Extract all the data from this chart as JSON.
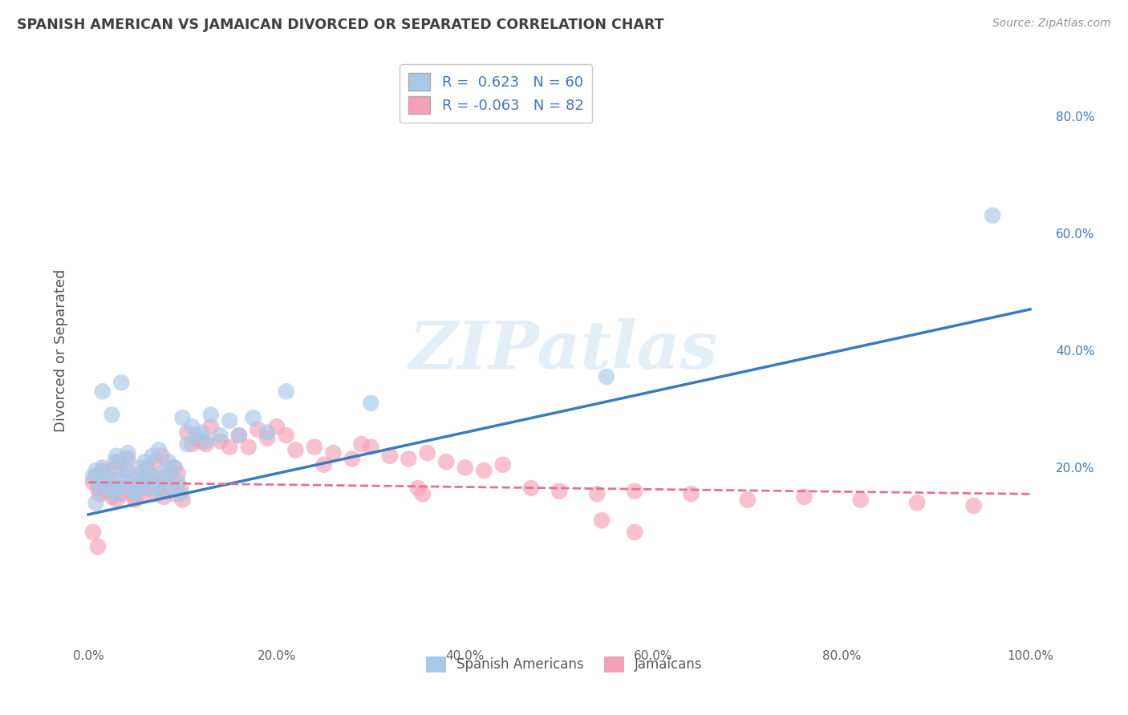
{
  "title": "SPANISH AMERICAN VS JAMAICAN DIVORCED OR SEPARATED CORRELATION CHART",
  "source": "Source: ZipAtlas.com",
  "ylabel": "Divorced or Separated",
  "watermark": "ZIPatlas",
  "legend": {
    "series1_label": "Spanish Americans",
    "series2_label": "Jamaicans",
    "series1_R": "0.623",
    "series1_N": "60",
    "series2_R": "-0.063",
    "series2_N": "82"
  },
  "blue_color": "#a8c8e8",
  "pink_color": "#f4a0b8",
  "blue_line_color": "#3a7abf",
  "pink_line_color": "#e87090",
  "grid_color": "#c8c8c8",
  "background_color": "#ffffff",
  "title_color": "#404040",
  "source_color": "#909090",
  "xlim": [
    -0.01,
    1.02
  ],
  "ylim": [
    -0.1,
    0.9
  ],
  "xticks": [
    0.0,
    0.2,
    0.4,
    0.6,
    0.8,
    1.0
  ],
  "xtick_labels": [
    "0.0%",
    "20.0%",
    "40.0%",
    "60.0%",
    "80.0%",
    "100.0%"
  ],
  "right_yticks": [
    0.2,
    0.4,
    0.6,
    0.8
  ],
  "right_ytick_labels": [
    "20.0%",
    "40.0%",
    "60.0%",
    "80.0%"
  ],
  "blue_line_x0": 0.0,
  "blue_line_y0": 0.12,
  "blue_line_x1": 1.0,
  "blue_line_y1": 0.47,
  "pink_line_x0": 0.0,
  "pink_line_y0": 0.175,
  "pink_line_x1": 1.0,
  "pink_line_y1": 0.155,
  "blue_scatter_x": [
    0.005,
    0.008,
    0.01,
    0.012,
    0.015,
    0.018,
    0.02,
    0.022,
    0.025,
    0.028,
    0.03,
    0.03,
    0.032,
    0.035,
    0.038,
    0.04,
    0.04,
    0.042,
    0.045,
    0.048,
    0.05,
    0.052,
    0.055,
    0.058,
    0.06,
    0.06,
    0.062,
    0.065,
    0.068,
    0.07,
    0.072,
    0.075,
    0.078,
    0.08,
    0.082,
    0.085,
    0.09,
    0.092,
    0.095,
    0.098,
    0.1,
    0.105,
    0.11,
    0.115,
    0.12,
    0.125,
    0.13,
    0.14,
    0.15,
    0.16,
    0.175,
    0.19,
    0.21,
    0.008,
    0.015,
    0.025,
    0.035,
    0.3,
    0.55,
    0.96
  ],
  "blue_scatter_y": [
    0.185,
    0.195,
    0.175,
    0.165,
    0.2,
    0.18,
    0.17,
    0.19,
    0.16,
    0.21,
    0.155,
    0.22,
    0.165,
    0.175,
    0.185,
    0.195,
    0.215,
    0.225,
    0.17,
    0.16,
    0.155,
    0.18,
    0.2,
    0.165,
    0.175,
    0.21,
    0.185,
    0.195,
    0.22,
    0.165,
    0.175,
    0.23,
    0.16,
    0.185,
    0.195,
    0.21,
    0.165,
    0.2,
    0.175,
    0.155,
    0.285,
    0.24,
    0.27,
    0.255,
    0.26,
    0.245,
    0.29,
    0.255,
    0.28,
    0.255,
    0.285,
    0.26,
    0.33,
    0.14,
    0.33,
    0.29,
    0.345,
    0.31,
    0.355,
    0.63
  ],
  "pink_scatter_x": [
    0.005,
    0.008,
    0.01,
    0.012,
    0.015,
    0.018,
    0.02,
    0.022,
    0.025,
    0.028,
    0.03,
    0.032,
    0.035,
    0.038,
    0.04,
    0.042,
    0.045,
    0.048,
    0.05,
    0.052,
    0.055,
    0.058,
    0.06,
    0.062,
    0.065,
    0.068,
    0.07,
    0.072,
    0.075,
    0.078,
    0.08,
    0.082,
    0.085,
    0.09,
    0.092,
    0.095,
    0.098,
    0.1,
    0.105,
    0.11,
    0.115,
    0.12,
    0.125,
    0.13,
    0.14,
    0.15,
    0.16,
    0.17,
    0.18,
    0.19,
    0.2,
    0.21,
    0.22,
    0.24,
    0.26,
    0.28,
    0.3,
    0.32,
    0.34,
    0.36,
    0.38,
    0.4,
    0.42,
    0.44,
    0.47,
    0.5,
    0.54,
    0.58,
    0.64,
    0.7,
    0.76,
    0.82,
    0.88,
    0.94,
    0.005,
    0.01,
    0.25,
    0.29,
    0.545,
    0.58,
    0.35,
    0.355
  ],
  "pink_scatter_y": [
    0.175,
    0.185,
    0.165,
    0.155,
    0.195,
    0.17,
    0.16,
    0.18,
    0.15,
    0.2,
    0.145,
    0.21,
    0.155,
    0.165,
    0.195,
    0.215,
    0.16,
    0.15,
    0.145,
    0.17,
    0.19,
    0.155,
    0.165,
    0.2,
    0.175,
    0.185,
    0.21,
    0.155,
    0.165,
    0.22,
    0.15,
    0.175,
    0.185,
    0.2,
    0.155,
    0.19,
    0.165,
    0.145,
    0.26,
    0.24,
    0.25,
    0.245,
    0.24,
    0.27,
    0.245,
    0.235,
    0.255,
    0.235,
    0.265,
    0.25,
    0.27,
    0.255,
    0.23,
    0.235,
    0.225,
    0.215,
    0.235,
    0.22,
    0.215,
    0.225,
    0.21,
    0.2,
    0.195,
    0.205,
    0.165,
    0.16,
    0.155,
    0.16,
    0.155,
    0.145,
    0.15,
    0.145,
    0.14,
    0.135,
    0.09,
    0.065,
    0.205,
    0.24,
    0.11,
    0.09,
    0.165,
    0.155
  ]
}
